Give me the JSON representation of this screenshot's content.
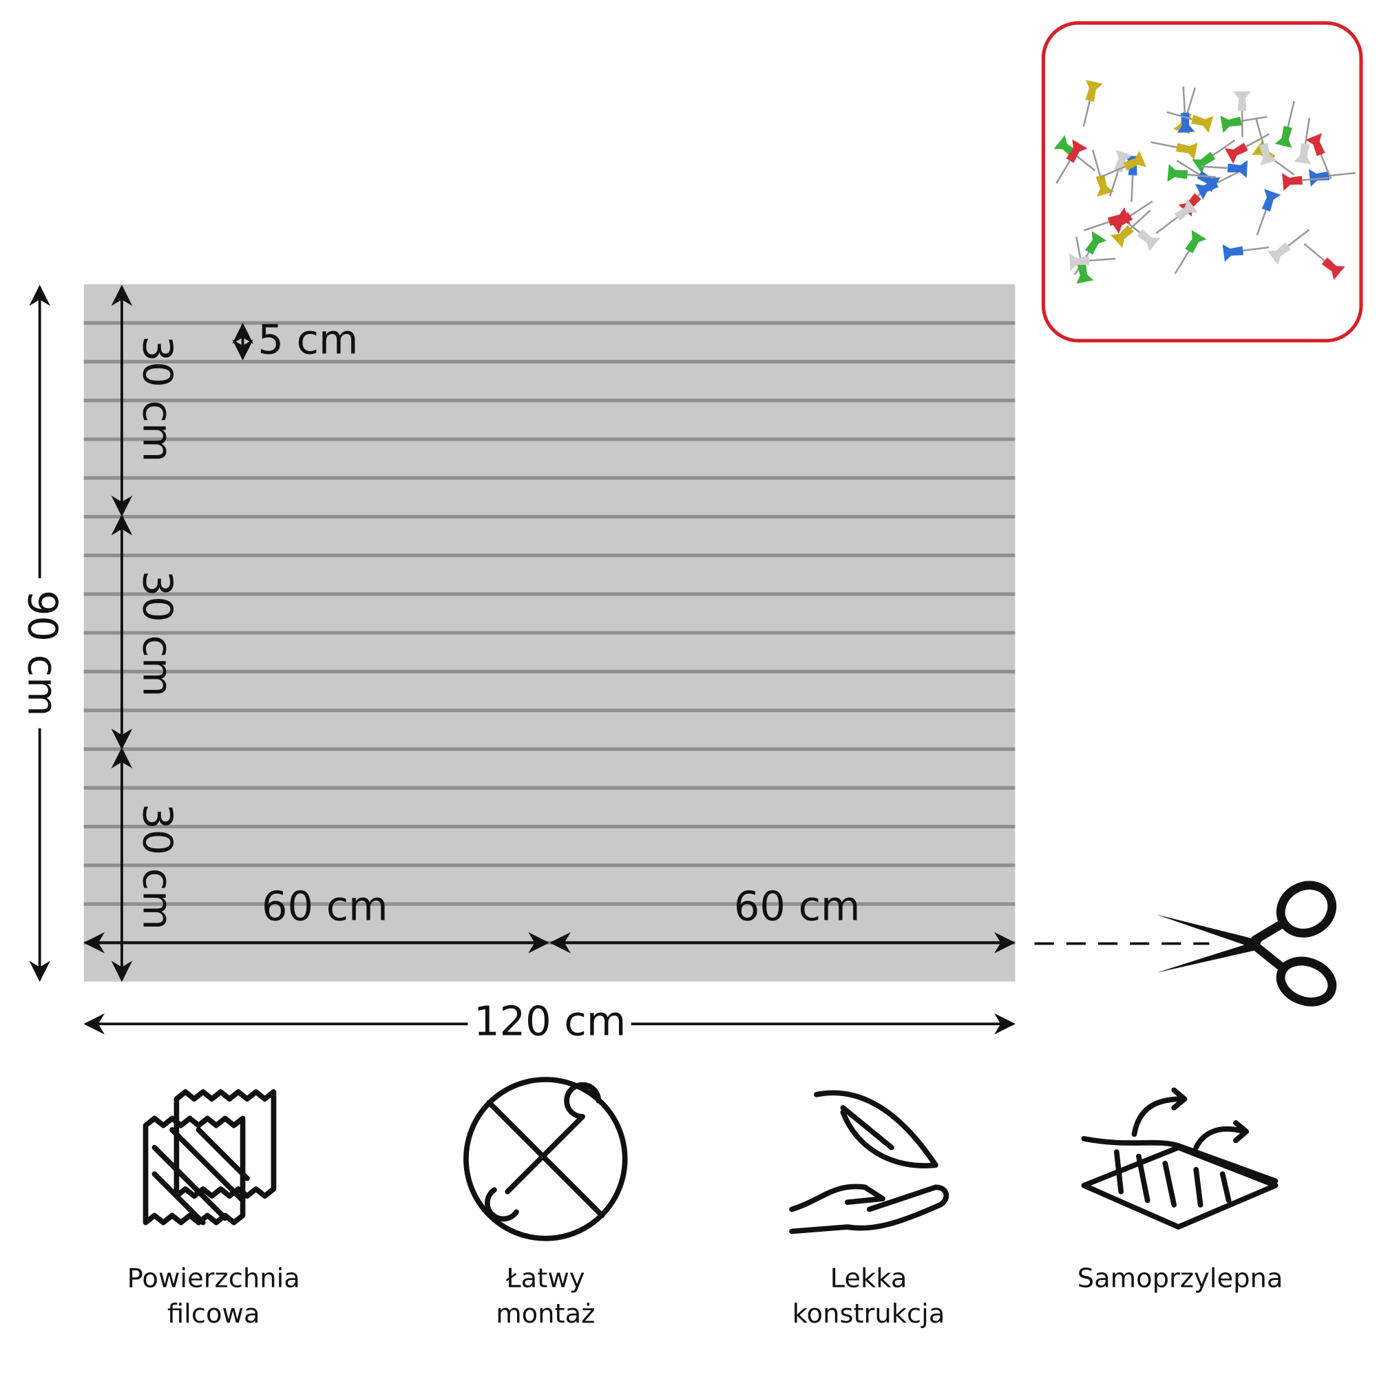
{
  "dimensions": {
    "height": "90 cm",
    "section_heights": [
      "30 cm",
      "30 cm",
      "30 cm"
    ],
    "stripe_spacing": "5 cm",
    "half_widths": [
      "60 cm",
      "60 cm"
    ],
    "width": "120 cm"
  },
  "features": [
    {
      "lines": [
        "Powierzchnia",
        "filcowa"
      ]
    },
    {
      "lines": [
        "Łatwy",
        "montaż"
      ]
    },
    {
      "lines": [
        "Lekka",
        "konstrukcja"
      ]
    },
    {
      "lines": [
        "Samoprzylepna"
      ]
    }
  ]
}
